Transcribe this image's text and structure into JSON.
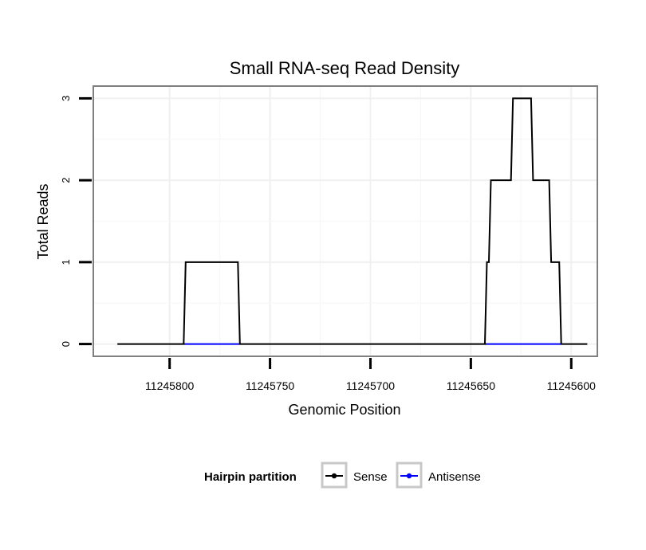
{
  "chart_data": {
    "type": "line",
    "title": "Small RNA-seq Read Density",
    "xlabel": "Genomic Position",
    "ylabel": "Total Reads",
    "x_reversed": true,
    "xlim": [
      11245838,
      11245587
    ],
    "ylim": [
      -0.15,
      3.15
    ],
    "x_ticks": [
      11245800,
      11245750,
      11245700,
      11245650,
      11245600
    ],
    "x_tick_labels": [
      "11245800",
      "11245750",
      "11245700",
      "11245650",
      "11245600"
    ],
    "y_ticks": [
      0,
      1,
      2,
      3
    ],
    "y_tick_labels": [
      "0",
      "1",
      "2",
      "3"
    ],
    "grid": true,
    "legend": {
      "title": "Hairpin partition",
      "position": "bottom"
    },
    "series": [
      {
        "name": "Sense",
        "color": "#000000",
        "x": [
          11245826,
          11245793,
          11245792,
          11245766,
          11245765,
          11245643,
          11245642,
          11245641,
          11245640,
          11245630,
          11245629,
          11245620,
          11245619,
          11245611,
          11245610,
          11245606,
          11245605,
          11245602,
          11245601,
          11245598,
          11245597,
          11245592
        ],
        "y": [
          0,
          0,
          1,
          1,
          0,
          0,
          1,
          1,
          2,
          2,
          3,
          3,
          2,
          2,
          1,
          1,
          0,
          0,
          0,
          0,
          0,
          0
        ]
      },
      {
        "name": "Antisense",
        "color": "#0000ff",
        "x": [
          11245793,
          11245765,
          11245643,
          11245605
        ],
        "y": [
          0,
          0,
          0,
          0
        ],
        "segments": [
          [
            0,
            1
          ],
          [
            2,
            3
          ]
        ]
      }
    ]
  }
}
